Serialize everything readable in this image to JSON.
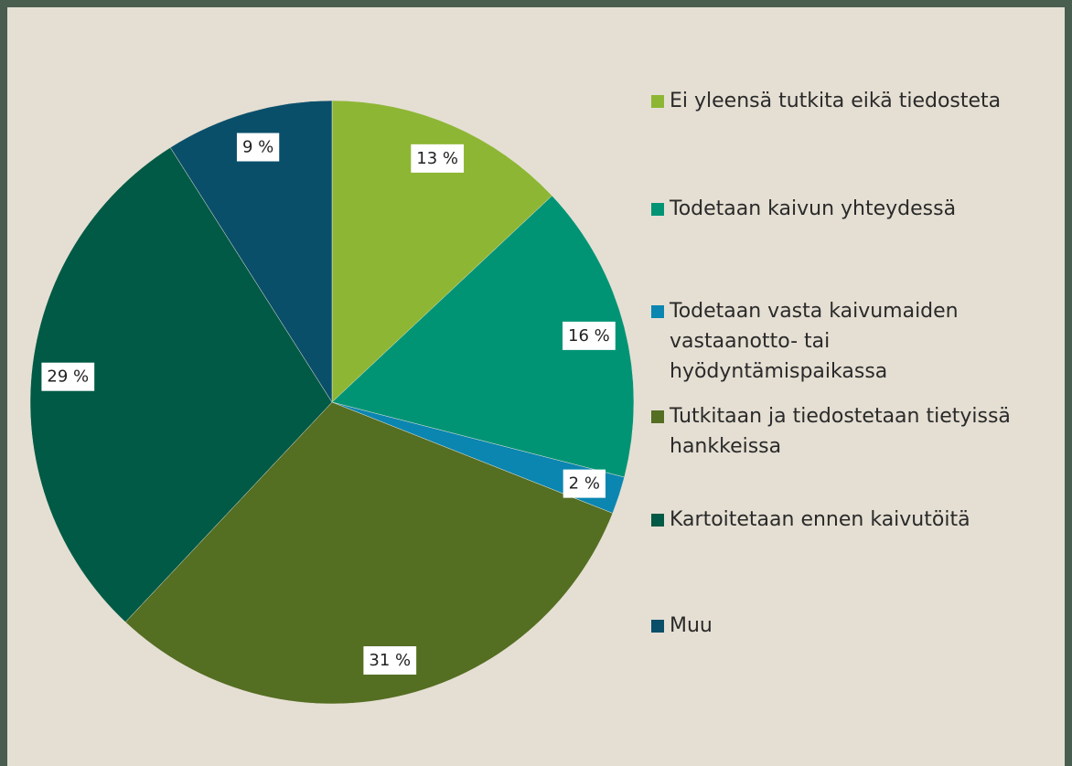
{
  "chart_data": {
    "type": "pie",
    "categories": [
      "Ei yleensä tutkita eikä tiedosteta",
      "Todetaan kaivun yhteydessä",
      "Todetaan vasta kaivumaiden vastaanotto- tai hyödyntämispaikassa",
      "Tutkitaan ja tiedostetaan tietyissä hankkeissa",
      "Kartoitetaan ennen kaivutöitä",
      "Muu"
    ],
    "values": [
      13,
      16,
      2,
      31,
      29,
      9
    ],
    "value_labels": [
      "13 %",
      "16 %",
      "2 %",
      "31 %",
      "29 %",
      "9 %"
    ],
    "colors": [
      "#8db634",
      "#009475",
      "#0a86b0",
      "#546e22",
      "#005a45",
      "#0a4f6a"
    ],
    "legend": "right"
  }
}
